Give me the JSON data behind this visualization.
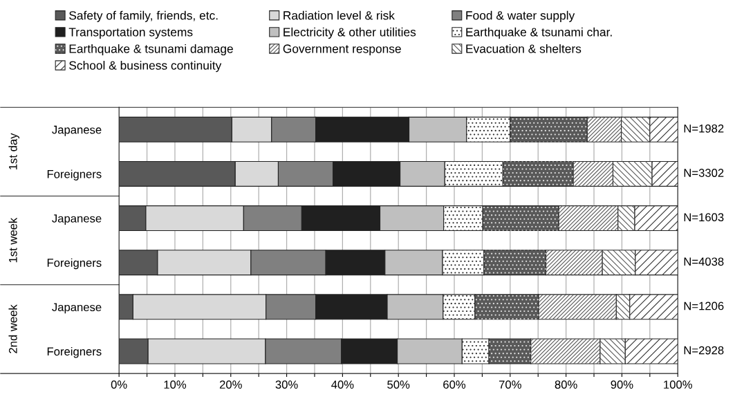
{
  "chart_data": {
    "type": "bar",
    "orientation": "horizontal",
    "stacked": true,
    "categories": [
      "Japanese",
      "Foreigners",
      "Japanese",
      "Foreigners",
      "Japanese",
      "Foreigners"
    ],
    "series": [
      {
        "name": "Safety of family, friends, etc.",
        "color": "#595959",
        "values": [
          20.2,
          20.8,
          4.8,
          6.9,
          2.5,
          5.2
        ]
      },
      {
        "name": "Radiation level & risk",
        "color": "#d9d9d9",
        "values": [
          7.1,
          7.7,
          17.5,
          16.7,
          23.8,
          21.0
        ]
      },
      {
        "name": "Food & water supply",
        "color": "#808080",
        "values": [
          7.9,
          9.8,
          10.4,
          13.4,
          8.9,
          13.6
        ]
      },
      {
        "name": "Transportation systems",
        "color": "#202020",
        "values": [
          16.7,
          12.0,
          14.0,
          10.6,
          12.8,
          10.0
        ]
      },
      {
        "name": "Electricity & other utilities",
        "color": "#bfbfbf",
        "values": [
          10.3,
          8.0,
          11.4,
          10.3,
          10.0,
          11.6
        ]
      },
      {
        "name": "Earthquake & tsunami char.",
        "color": "#ffffff",
        "values": [
          7.8,
          10.4,
          7.0,
          7.4,
          5.7,
          4.8
        ]
      },
      {
        "name": "Earthquake & tsunami damage",
        "color": "#595959",
        "values": [
          13.8,
          12.6,
          13.6,
          11.1,
          11.4,
          7.5
        ]
      },
      {
        "name": "Government response",
        "color": "#ffffff",
        "values": [
          6.1,
          7.1,
          10.6,
          10.1,
          13.9,
          12.4
        ]
      },
      {
        "name": "Evacuation & shelters",
        "color": "#ffffff",
        "values": [
          5.1,
          7.0,
          3.0,
          5.9,
          2.4,
          4.5
        ]
      },
      {
        "name": "School & business continuity",
        "color": "#ffffff",
        "values": [
          5.0,
          4.6,
          7.7,
          7.6,
          8.6,
          9.4
        ]
      }
    ],
    "xlim": [
      0,
      100
    ],
    "xticks": [
      {
        "value": 0,
        "label": "0%"
      },
      {
        "value": 5,
        "label": null
      },
      {
        "value": 10,
        "label": "10%"
      },
      {
        "value": 15,
        "label": null
      },
      {
        "value": 20,
        "label": "20%"
      },
      {
        "value": 25,
        "label": null
      },
      {
        "value": 30,
        "label": "30%"
      },
      {
        "value": 35,
        "label": null
      },
      {
        "value": 40,
        "label": "40%"
      },
      {
        "value": 45,
        "label": null
      },
      {
        "value": 50,
        "label": "50%"
      },
      {
        "value": 55,
        "label": null
      },
      {
        "value": 60,
        "label": "60%"
      },
      {
        "value": 65,
        "label": null
      },
      {
        "value": 70,
        "label": "70%"
      },
      {
        "value": 75,
        "label": null
      },
      {
        "value": 80,
        "label": "80%"
      },
      {
        "value": 85,
        "label": null
      },
      {
        "value": 90,
        "label": "90%"
      },
      {
        "value": 95,
        "label": null
      },
      {
        "value": 100,
        "label": "100%"
      }
    ],
    "grid": "x",
    "legend": "top",
    "annotations": [
      "1st day",
      "1st week",
      "2nd week",
      "N=1982",
      "N=3302",
      "N=1603",
      "N=4038",
      "N=1206",
      "N=2928"
    ]
  }
}
